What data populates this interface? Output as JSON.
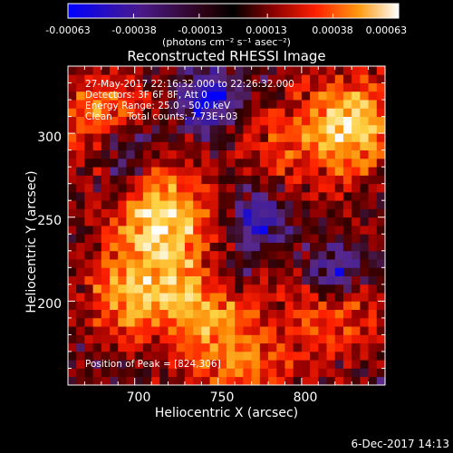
{
  "colorbar": {
    "ticks": [
      "-0.00063",
      "-0.00038",
      "-0.00013",
      "0.00013",
      "0.00038",
      "0.00063"
    ],
    "tick_values": [
      -0.00063,
      -0.00038,
      -0.00013,
      0.00013,
      0.00038,
      0.00063
    ],
    "units": "(photons cm⁻² s⁻¹ asec⁻²)",
    "range": [
      -0.00063,
      0.00063
    ]
  },
  "image": {
    "title": "Reconstructed RHESSI Image",
    "info": [
      "27-May-2017 22:16:32.000 to 22:26:32.000",
      "Detectors: 3F 6F 8F, Att 0",
      "Energy Range: 25.0 - 50.0 keV",
      "Clean     Total counts: 7.73E+03"
    ],
    "peak": "Position of Peak = [824,306]"
  },
  "footer": {
    "timestamp": "6-Dec-2017 14:13"
  },
  "chart_data": {
    "type": "heatmap",
    "title": "Reconstructed RHESSI Image",
    "xlabel": "Heliocentric X (arcsec)",
    "ylabel": "Heliocentric Y (arcsec)",
    "xlim": [
      660,
      850
    ],
    "ylim": [
      150,
      340
    ],
    "x_ticks": [
      700,
      750,
      800
    ],
    "y_ticks": [
      200,
      250,
      300
    ],
    "colormap": [
      "#0000ff",
      "#3a1aa0",
      "#5a2a8a",
      "#300000",
      "#a00000",
      "#ff2000",
      "#ff8000",
      "#ffd040",
      "#ffffff"
    ],
    "peak_position": [
      824,
      306
    ],
    "bright_regions": [
      {
        "x": 718,
        "y": 250,
        "level": 0.00063
      },
      {
        "x": 830,
        "y": 305,
        "level": 0.00063
      },
      {
        "x": 700,
        "y": 205,
        "level": 0.0005
      },
      {
        "x": 745,
        "y": 200,
        "level": 0.0005
      },
      {
        "x": 680,
        "y": 310,
        "level": 0.00038
      },
      {
        "x": 765,
        "y": 160,
        "level": 0.00038
      },
      {
        "x": 820,
        "y": 195,
        "level": 0.00038
      },
      {
        "x": 790,
        "y": 292,
        "level": 0.00025
      }
    ],
    "dim_regions": [
      {
        "x": 745,
        "y": 320,
        "level": -0.0005
      },
      {
        "x": 775,
        "y": 250,
        "level": -0.00038
      },
      {
        "x": 755,
        "y": 215,
        "level": -0.00038
      },
      {
        "x": 820,
        "y": 215,
        "level": -0.0005
      },
      {
        "x": 695,
        "y": 290,
        "level": -0.00038
      }
    ]
  }
}
